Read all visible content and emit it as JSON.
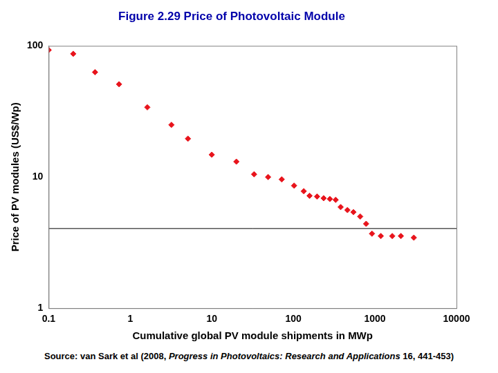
{
  "chart_data": {
    "type": "scatter",
    "title": "Figure 2.29 Price of Photovoltaic Module",
    "x_label": "Cumulative global PV module shipments in MWp",
    "y_label": "Price of PV modules (US$/Wp)",
    "x": [
      0.1,
      0.2,
      0.37,
      0.73,
      1.62,
      3.2,
      5.1,
      10,
      20,
      33,
      49,
      72,
      102,
      134,
      158,
      195,
      235,
      280,
      330,
      380,
      460,
      545,
      660,
      780,
      920,
      1180,
      1630,
      2080,
      3000
    ],
    "values": [
      93,
      87,
      63,
      51,
      34,
      25,
      19.6,
      14.8,
      13.1,
      10.5,
      10,
      9.6,
      8.6,
      7.8,
      7.2,
      7.1,
      6.9,
      6.8,
      6.7,
      5.9,
      5.6,
      5.4,
      5.0,
      4.4,
      3.7,
      3.55,
      3.55,
      3.55,
      3.45
    ],
    "color": "#e8141c",
    "marker": "diamond",
    "reference_line": 4.05,
    "log": true,
    "xlim": [
      0.1,
      10000
    ],
    "xticks": [
      0.1,
      1,
      10,
      100,
      1000,
      10000
    ],
    "ylim": [
      1,
      100
    ],
    "yticks": [
      1,
      10,
      100
    ],
    "grid": false,
    "source": [
      "Source: van Sark et al (2008, ",
      "Progress in Photovoltaics: Research and Applications",
      " 16, 441-453)"
    ]
  }
}
